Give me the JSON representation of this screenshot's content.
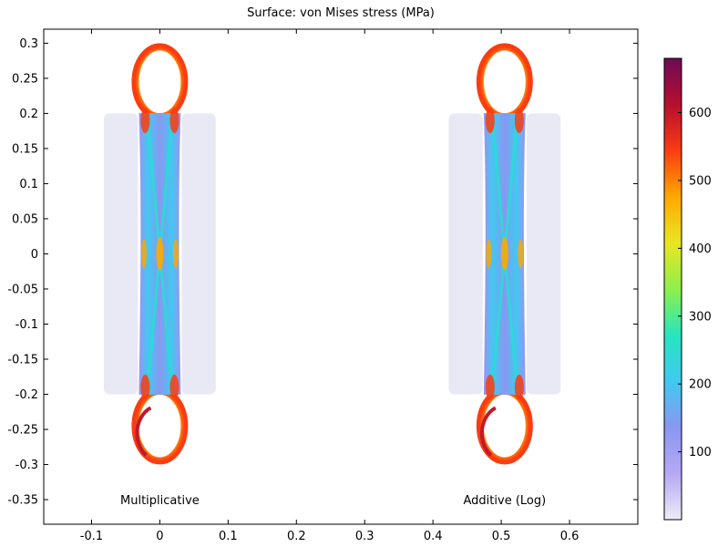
{
  "chart_data": {
    "type": "heatmap",
    "title": "Surface: von Mises stress (MPa)",
    "xlabel": "",
    "ylabel": "",
    "xlim": [
      -0.17,
      0.7
    ],
    "ylim": [
      -0.385,
      0.32
    ],
    "x_ticks": [
      -0.1,
      0,
      0.1,
      0.2,
      0.3,
      0.4,
      0.5,
      0.6
    ],
    "x_tick_labels": [
      "-0.1",
      "0",
      "0.1",
      "0.2",
      "0.3",
      "0.4",
      "0.5",
      "0.6"
    ],
    "y_ticks": [
      0.3,
      0.25,
      0.2,
      0.15,
      0.1,
      0.05,
      0,
      -0.05,
      -0.1,
      -0.15,
      -0.2,
      -0.25,
      -0.3,
      -0.35
    ],
    "y_tick_labels": [
      "0.3",
      "0.25",
      "0.2",
      "0.15",
      "0.1",
      "0.05",
      "0",
      "-0.05",
      "-0.1",
      "-0.15",
      "-0.2",
      "-0.25",
      "-0.3",
      "-0.35"
    ],
    "grid": false,
    "colorbar": {
      "min": 0,
      "max": 680,
      "ticks": [
        100,
        200,
        300,
        400,
        500,
        600
      ],
      "tick_labels": [
        "100",
        "200",
        "300",
        "400",
        "500",
        "600"
      ],
      "colors": [
        "#ececf6",
        "#b6a8f5",
        "#8a97f2",
        "#40c9f0",
        "#26e6c0",
        "#8df04a",
        "#e9e621",
        "#ffa800",
        "#fa3c12",
        "#b70f2e",
        "#6d0b57"
      ]
    },
    "parts": [
      {
        "label": "Multiplicative",
        "center_x": 0.0,
        "label_x": 0.0,
        "label_y": -0.35
      },
      {
        "label": "Additive (Log)",
        "center_x": 0.505,
        "label_x": 0.505,
        "label_y": -0.35
      }
    ],
    "rigid_plate": {
      "half_width": 0.082,
      "half_height": 0.2,
      "color": "#e9e9f5"
    }
  }
}
